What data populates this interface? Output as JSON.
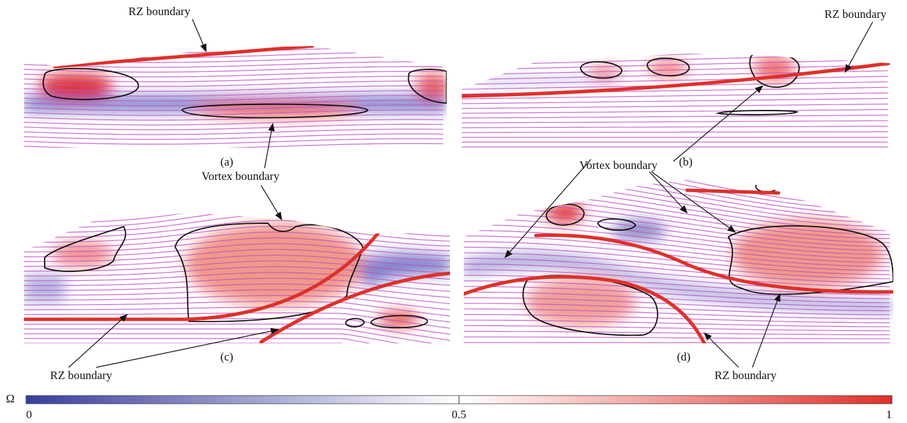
{
  "panels": [
    {
      "label": "(a)"
    },
    {
      "label": "(b)"
    },
    {
      "label": "(c)"
    },
    {
      "label": "(d)"
    }
  ],
  "annotations": [
    {
      "text": "RZ boundary"
    },
    {
      "text": "RZ boundary"
    },
    {
      "text": "Vortex boundary"
    },
    {
      "text": "Vortex boundary"
    },
    {
      "text": "RZ boundary"
    },
    {
      "text": "RZ boundary"
    }
  ],
  "colorbar": {
    "label": "Ω",
    "range": [
      0,
      1
    ],
    "ticks": [
      0,
      0.5,
      1
    ],
    "colors": [
      "#3a3d9c",
      "#ffffff",
      "#e0302a"
    ]
  }
}
